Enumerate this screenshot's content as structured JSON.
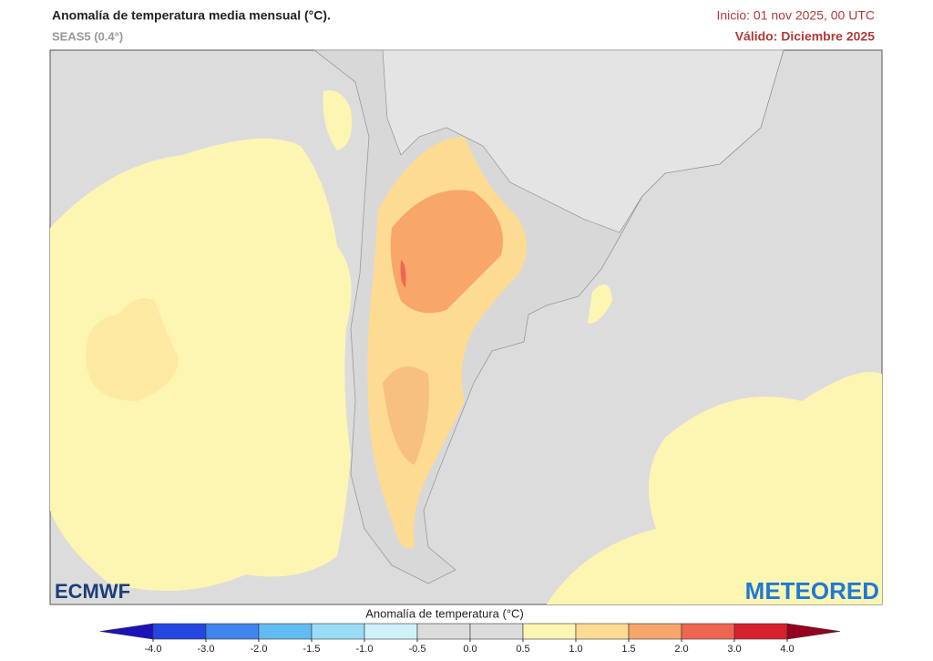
{
  "header": {
    "title": "Anomalía de temperatura media mensual (°C).",
    "subtitle": "SEAS5 (0.4°)",
    "init": "Inicio: 01 nov 2025, 00 UTC",
    "valid": "Válido: Diciembre 2025"
  },
  "logos": {
    "left": "ECMWF",
    "right": "METEORED"
  },
  "legend": {
    "title": "Anomalía de temperatura (°C)",
    "ticks": [
      {
        "value": -4,
        "label": "-4.0"
      },
      {
        "value": -3,
        "label": "-3.0"
      },
      {
        "value": -2,
        "label": "-2.0"
      },
      {
        "value": -1.5,
        "label": "-1.5"
      },
      {
        "value": -1,
        "label": "-1.0"
      },
      {
        "value": -0.5,
        "label": "-0.5"
      },
      {
        "value": 0,
        "label": "0.0"
      },
      {
        "value": 0.5,
        "label": "0.5"
      },
      {
        "value": 1,
        "label": "1.0"
      },
      {
        "value": 1.5,
        "label": "1.5"
      },
      {
        "value": 2,
        "label": "2.0"
      },
      {
        "value": 3,
        "label": "3.0"
      },
      {
        "value": 4,
        "label": "4.0"
      }
    ],
    "colors": [
      "#1c12b8",
      "#2646e0",
      "#3f86ee",
      "#62bcf3",
      "#98dcf6",
      "#cff1f9",
      "#dcdcdc",
      "#dcdcdc",
      "#fdf6b2",
      "#fddb92",
      "#f8a66a",
      "#ef6650",
      "#d6212c",
      "#95001f"
    ]
  }
}
